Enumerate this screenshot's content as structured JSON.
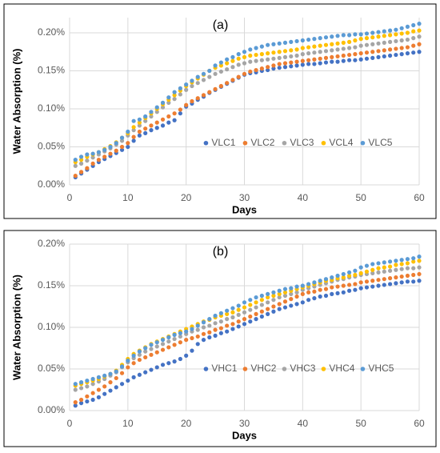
{
  "chart_data": [
    {
      "type": "scatter",
      "title": "(a)",
      "x_label": "Days",
      "y_label": "Water Absorption (%)",
      "x": [
        1,
        2,
        3,
        4,
        5,
        6,
        7,
        8,
        9,
        10,
        11,
        12,
        13,
        14,
        15,
        16,
        17,
        18,
        19,
        20,
        21,
        22,
        23,
        24,
        25,
        26,
        27,
        28,
        29,
        30,
        31,
        32,
        33,
        34,
        35,
        36,
        37,
        38,
        39,
        40,
        41,
        42,
        43,
        44,
        45,
        46,
        47,
        48,
        49,
        50,
        51,
        52,
        53,
        54,
        55,
        56,
        57,
        58,
        59,
        60
      ],
      "xlim": [
        0,
        60
      ],
      "xticks": [
        0,
        10,
        20,
        30,
        40,
        50,
        60
      ],
      "ylim": [
        0,
        0.22
      ],
      "yticks": [
        {
          "value": 0,
          "label": "0.00%"
        },
        {
          "value": 0.05,
          "label": "0.05%"
        },
        {
          "value": 0.1,
          "label": "0.10%"
        },
        {
          "value": 0.15,
          "label": "0.15%"
        },
        {
          "value": 0.2,
          "label": "0.20%"
        }
      ],
      "grid": true,
      "legend": "lower right",
      "series": [
        {
          "name": "VLC1",
          "color": "#4472c4",
          "values": [
            0.01,
            0.015,
            0.02,
            0.025,
            0.03,
            0.034,
            0.038,
            0.042,
            0.046,
            0.05,
            0.058,
            0.065,
            0.068,
            0.072,
            0.075,
            0.078,
            0.082,
            0.085,
            0.094,
            0.103,
            0.107,
            0.112,
            0.116,
            0.121,
            0.125,
            0.129,
            0.133,
            0.137,
            0.141,
            0.145,
            0.147,
            0.148,
            0.15,
            0.151,
            0.153,
            0.154,
            0.155,
            0.156,
            0.157,
            0.158,
            0.159,
            0.159,
            0.16,
            0.161,
            0.162,
            0.162,
            0.163,
            0.164,
            0.164,
            0.165,
            0.166,
            0.167,
            0.168,
            0.169,
            0.17,
            0.171,
            0.172,
            0.173,
            0.174,
            0.175
          ]
        },
        {
          "name": "VLC2",
          "color": "#ed7d31",
          "values": [
            0.012,
            0.017,
            0.022,
            0.028,
            0.033,
            0.037,
            0.041,
            0.045,
            0.05,
            0.055,
            0.063,
            0.07,
            0.074,
            0.078,
            0.082,
            0.086,
            0.09,
            0.094,
            0.099,
            0.105,
            0.11,
            0.114,
            0.118,
            0.122,
            0.126,
            0.13,
            0.134,
            0.138,
            0.142,
            0.146,
            0.149,
            0.151,
            0.153,
            0.155,
            0.157,
            0.159,
            0.16,
            0.161,
            0.162,
            0.163,
            0.164,
            0.165,
            0.166,
            0.167,
            0.168,
            0.169,
            0.17,
            0.171,
            0.172,
            0.173,
            0.174,
            0.175,
            0.176,
            0.177,
            0.178,
            0.179,
            0.18,
            0.181,
            0.183,
            0.185
          ]
        },
        {
          "name": "VLC3",
          "color": "#a5a5a5",
          "values": [
            0.025,
            0.028,
            0.032,
            0.036,
            0.04,
            0.044,
            0.048,
            0.053,
            0.058,
            0.065,
            0.072,
            0.078,
            0.084,
            0.09,
            0.096,
            0.102,
            0.108,
            0.113,
            0.119,
            0.125,
            0.13,
            0.134,
            0.138,
            0.142,
            0.146,
            0.149,
            0.152,
            0.155,
            0.158,
            0.16,
            0.162,
            0.163,
            0.164,
            0.165,
            0.166,
            0.167,
            0.168,
            0.169,
            0.17,
            0.172,
            0.173,
            0.174,
            0.175,
            0.176,
            0.177,
            0.178,
            0.179,
            0.18,
            0.181,
            0.183,
            0.184,
            0.185,
            0.186,
            0.187,
            0.188,
            0.189,
            0.19,
            0.191,
            0.193,
            0.195
          ]
        },
        {
          "name": "VCL4",
          "color": "#ffc000",
          "values": [
            0.03,
            0.033,
            0.037,
            0.04,
            0.043,
            0.047,
            0.051,
            0.056,
            0.062,
            0.068,
            0.076,
            0.082,
            0.088,
            0.094,
            0.1,
            0.106,
            0.112,
            0.118,
            0.124,
            0.13,
            0.135,
            0.14,
            0.145,
            0.15,
            0.154,
            0.157,
            0.16,
            0.163,
            0.166,
            0.168,
            0.17,
            0.171,
            0.172,
            0.173,
            0.174,
            0.175,
            0.176,
            0.177,
            0.178,
            0.18,
            0.181,
            0.182,
            0.183,
            0.184,
            0.185,
            0.186,
            0.187,
            0.188,
            0.19,
            0.192,
            0.193,
            0.194,
            0.195,
            0.196,
            0.197,
            0.198,
            0.199,
            0.2,
            0.202,
            0.203
          ]
        },
        {
          "name": "VLC5",
          "color": "#5b9bd5",
          "values": [
            0.033,
            0.037,
            0.04,
            0.041,
            0.043,
            0.046,
            0.05,
            0.055,
            0.062,
            0.07,
            0.084,
            0.086,
            0.09,
            0.096,
            0.102,
            0.108,
            0.115,
            0.122,
            0.127,
            0.132,
            0.137,
            0.142,
            0.146,
            0.15,
            0.157,
            0.161,
            0.165,
            0.168,
            0.172,
            0.175,
            0.178,
            0.18,
            0.182,
            0.184,
            0.185,
            0.186,
            0.187,
            0.188,
            0.189,
            0.19,
            0.191,
            0.192,
            0.193,
            0.194,
            0.195,
            0.196,
            0.197,
            0.197,
            0.198,
            0.198,
            0.199,
            0.2,
            0.201,
            0.202,
            0.203,
            0.204,
            0.206,
            0.208,
            0.21,
            0.212
          ]
        }
      ]
    },
    {
      "type": "scatter",
      "title": "(b)",
      "x_label": "Days",
      "y_label": "Water Absorption (%)",
      "x": [
        1,
        2,
        3,
        4,
        5,
        6,
        7,
        8,
        9,
        10,
        11,
        12,
        13,
        14,
        15,
        16,
        17,
        18,
        19,
        20,
        21,
        22,
        23,
        24,
        25,
        26,
        27,
        28,
        29,
        30,
        31,
        32,
        33,
        34,
        35,
        36,
        37,
        38,
        39,
        40,
        41,
        42,
        43,
        44,
        45,
        46,
        47,
        48,
        49,
        50,
        51,
        52,
        53,
        54,
        55,
        56,
        57,
        58,
        59,
        60
      ],
      "xlim": [
        0,
        60
      ],
      "xticks": [
        0,
        10,
        20,
        30,
        40,
        50,
        60
      ],
      "ylim": [
        0,
        0.2
      ],
      "yticks": [
        {
          "value": 0,
          "label": "0.00%"
        },
        {
          "value": 0.05,
          "label": "0.05%"
        },
        {
          "value": 0.1,
          "label": "0.10%"
        },
        {
          "value": 0.15,
          "label": "0.15%"
        },
        {
          "value": 0.2,
          "label": "0.20%"
        }
      ],
      "grid": true,
      "legend": "lower right",
      "series": [
        {
          "name": "VHC1",
          "color": "#4472c4",
          "values": [
            0.006,
            0.009,
            0.011,
            0.013,
            0.016,
            0.02,
            0.024,
            0.028,
            0.032,
            0.036,
            0.04,
            0.043,
            0.046,
            0.049,
            0.052,
            0.055,
            0.057,
            0.059,
            0.062,
            0.066,
            0.072,
            0.08,
            0.085,
            0.088,
            0.09,
            0.093,
            0.095,
            0.098,
            0.101,
            0.104,
            0.107,
            0.11,
            0.113,
            0.116,
            0.119,
            0.122,
            0.124,
            0.126,
            0.128,
            0.13,
            0.133,
            0.135,
            0.137,
            0.138,
            0.14,
            0.141,
            0.142,
            0.144,
            0.145,
            0.147,
            0.148,
            0.149,
            0.15,
            0.151,
            0.152,
            0.153,
            0.154,
            0.155,
            0.155,
            0.156
          ]
        },
        {
          "name": "VHC2",
          "color": "#ed7d31",
          "values": [
            0.01,
            0.013,
            0.017,
            0.021,
            0.025,
            0.029,
            0.034,
            0.039,
            0.045,
            0.052,
            0.057,
            0.061,
            0.064,
            0.067,
            0.07,
            0.073,
            0.076,
            0.079,
            0.082,
            0.085,
            0.087,
            0.089,
            0.092,
            0.094,
            0.097,
            0.099,
            0.102,
            0.104,
            0.107,
            0.11,
            0.113,
            0.116,
            0.119,
            0.122,
            0.125,
            0.128,
            0.131,
            0.134,
            0.137,
            0.14,
            0.142,
            0.143,
            0.145,
            0.146,
            0.148,
            0.149,
            0.15,
            0.151,
            0.152,
            0.154,
            0.155,
            0.156,
            0.157,
            0.158,
            0.159,
            0.16,
            0.161,
            0.162,
            0.163,
            0.164
          ]
        },
        {
          "name": "VHC3",
          "color": "#a5a5a5",
          "values": [
            0.025,
            0.027,
            0.029,
            0.032,
            0.035,
            0.038,
            0.042,
            0.046,
            0.052,
            0.058,
            0.063,
            0.067,
            0.071,
            0.074,
            0.077,
            0.08,
            0.083,
            0.086,
            0.089,
            0.092,
            0.095,
            0.097,
            0.1,
            0.102,
            0.105,
            0.107,
            0.11,
            0.112,
            0.115,
            0.118,
            0.121,
            0.124,
            0.127,
            0.13,
            0.133,
            0.136,
            0.138,
            0.14,
            0.142,
            0.145,
            0.147,
            0.149,
            0.151,
            0.153,
            0.155,
            0.157,
            0.158,
            0.16,
            0.161,
            0.163,
            0.164,
            0.165,
            0.166,
            0.167,
            0.168,
            0.169,
            0.17,
            0.171,
            0.171,
            0.172
          ]
        },
        {
          "name": "VHC4",
          "color": "#ffc000",
          "values": [
            0.03,
            0.032,
            0.034,
            0.036,
            0.038,
            0.041,
            0.044,
            0.048,
            0.055,
            0.062,
            0.068,
            0.072,
            0.076,
            0.08,
            0.083,
            0.086,
            0.089,
            0.092,
            0.095,
            0.098,
            0.101,
            0.104,
            0.107,
            0.109,
            0.112,
            0.114,
            0.116,
            0.118,
            0.121,
            0.124,
            0.127,
            0.13,
            0.133,
            0.136,
            0.138,
            0.14,
            0.142,
            0.144,
            0.146,
            0.148,
            0.15,
            0.152,
            0.154,
            0.156,
            0.157,
            0.159,
            0.16,
            0.162,
            0.163,
            0.165,
            0.167,
            0.169,
            0.171,
            0.172,
            0.173,
            0.175,
            0.176,
            0.177,
            0.179,
            0.18
          ]
        },
        {
          "name": "VHC5",
          "color": "#5b9bd5",
          "values": [
            0.032,
            0.034,
            0.036,
            0.038,
            0.04,
            0.042,
            0.044,
            0.047,
            0.053,
            0.06,
            0.066,
            0.071,
            0.075,
            0.079,
            0.082,
            0.085,
            0.088,
            0.091,
            0.093,
            0.095,
            0.098,
            0.102,
            0.106,
            0.11,
            0.114,
            0.117,
            0.12,
            0.123,
            0.126,
            0.13,
            0.133,
            0.136,
            0.138,
            0.14,
            0.142,
            0.144,
            0.146,
            0.147,
            0.149,
            0.15,
            0.152,
            0.154,
            0.156,
            0.158,
            0.16,
            0.162,
            0.164,
            0.166,
            0.168,
            0.172,
            0.174,
            0.176,
            0.177,
            0.178,
            0.179,
            0.18,
            0.181,
            0.182,
            0.183,
            0.185
          ]
        }
      ]
    }
  ]
}
